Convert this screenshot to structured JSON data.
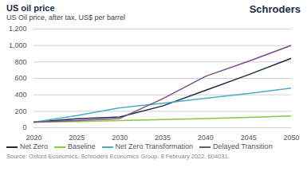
{
  "chart_data": {
    "type": "line",
    "title": "US oil price",
    "subtitle": "US Oil price, after tax, US$ per barrel",
    "source": "Source: Oxford Economics, Schroders Economics Group. 8 February 2022. 604031.",
    "annotations": [
      "Schroders"
    ],
    "x": [
      2020,
      2025,
      2030,
      2035,
      2040,
      2045,
      2050
    ],
    "series": [
      {
        "name": "Net Zero",
        "color": "#1c2b4a",
        "values": [
          68,
          108,
          130,
          265,
          455,
          645,
          845
        ]
      },
      {
        "name": "Baseline",
        "color": "#8dc63f",
        "values": [
          68,
          74,
          88,
          100,
          112,
          126,
          143
        ]
      },
      {
        "name": "Net Zero Transformation",
        "color": "#4bacc6",
        "values": [
          68,
          148,
          242,
          298,
          358,
          415,
          482
        ]
      },
      {
        "name": "Delayed Transition",
        "color": "#7c4d8a",
        "values": [
          68,
          88,
          112,
          352,
          625,
          808,
          1002
        ]
      }
    ],
    "xlim": [
      2020,
      2050
    ],
    "xticks": [
      2020,
      2025,
      2030,
      2035,
      2040,
      2045,
      2050
    ],
    "ylim": [
      0,
      1200
    ],
    "yticks": [
      0,
      200,
      400,
      600,
      800,
      {
        "value": 1000,
        "label": "1,000"
      },
      {
        "value": 1200,
        "label": "1,200"
      }
    ],
    "grid": "y",
    "legend": "bottom"
  }
}
